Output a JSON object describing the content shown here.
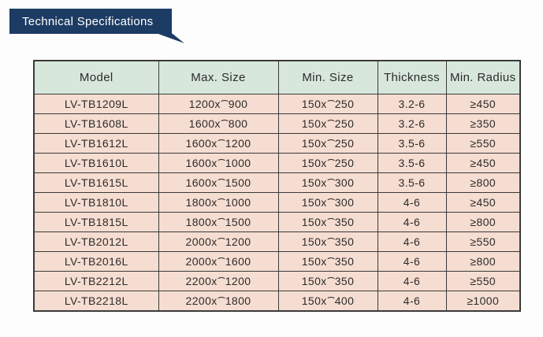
{
  "banner": {
    "title": "Technical Specifications"
  },
  "table": {
    "headers": [
      "Model",
      "Max. Size",
      "Min. Size",
      "Thickness",
      "Min. Radius"
    ],
    "rows": [
      [
        "LV-TB1209L",
        "1200x⌒900",
        "150x⌒250",
        "3.2-6",
        "≥450"
      ],
      [
        "LV-TB1608L",
        "1600x⌒800",
        "150x⌒250",
        "3.2-6",
        "≥350"
      ],
      [
        "LV-TB1612L",
        "1600x⌒1200",
        "150x⌒250",
        "3.5-6",
        "≥550"
      ],
      [
        "LV-TB1610L",
        "1600x⌒1000",
        "150x⌒250",
        "3.5-6",
        "≥450"
      ],
      [
        "LV-TB1615L",
        "1600x⌒1500",
        "150x⌒300",
        "3.5-6",
        "≥800"
      ],
      [
        "LV-TB1810L",
        "1800x⌒1000",
        "150x⌒300",
        "4-6",
        "≥450"
      ],
      [
        "LV-TB1815L",
        "1800x⌒1500",
        "150x⌒350",
        "4-6",
        "≥800"
      ],
      [
        "LV-TB2012L",
        "2000x⌒1200",
        "150x⌒350",
        "4-6",
        "≥550"
      ],
      [
        "LV-TB2016L",
        "2000x⌒1600",
        "150x⌒350",
        "4-6",
        "≥800"
      ],
      [
        "LV-TB2212L",
        "2200x⌒1200",
        "150x⌒350",
        "4-6",
        "≥550"
      ],
      [
        "LV-TB2218L",
        "2200x⌒1800",
        "150x⌒400",
        "4-6",
        "≥1000"
      ]
    ]
  },
  "colors": {
    "banner_bg": "#1d3c64",
    "header_bg": "#d8e7dc",
    "row_bg": "#f6ddd1",
    "border": "#3a3a3a",
    "text": "#2b2b2b",
    "banner_text": "#ffffff"
  }
}
